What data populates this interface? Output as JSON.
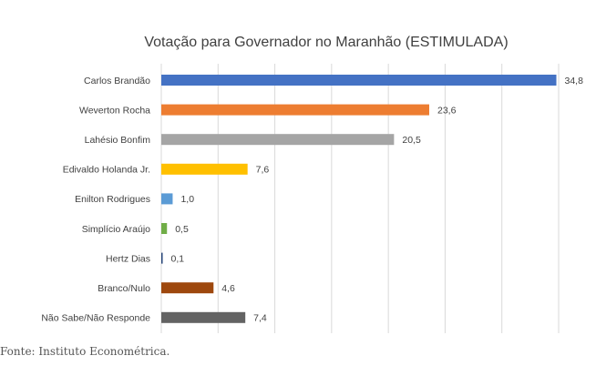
{
  "chart_data": {
    "type": "bar",
    "orientation": "horizontal",
    "title": "Votação para Governador no Maranhão (ESTIMULADA)",
    "xlabel": "",
    "ylabel": "",
    "xlim": [
      0,
      35
    ],
    "grid": true,
    "legend": "none",
    "categories": [
      "Carlos Brandão",
      "Weverton Rocha",
      "Lahésio Bonfim",
      "Edivaldo Holanda Jr.",
      "Enilton Rodrigues",
      "Simplício Araújo",
      "Hertz Dias",
      "Branco/Nulo",
      "Não Sabe/Não Responde"
    ],
    "values": [
      34.8,
      23.6,
      20.5,
      7.6,
      1.0,
      0.5,
      0.1,
      4.6,
      7.4
    ],
    "value_labels": [
      "34,8",
      "23,6",
      "20,5",
      "7,6",
      "1,0",
      "0,5",
      "0,1",
      "4,6",
      "7,4"
    ],
    "colors": [
      "#4472c4",
      "#ed7d31",
      "#a5a5a5",
      "#ffc000",
      "#5b9bd5",
      "#70ad47",
      "#264478",
      "#9e480e",
      "#636363"
    ]
  },
  "source": "Fonte: Instituto Econométrica."
}
